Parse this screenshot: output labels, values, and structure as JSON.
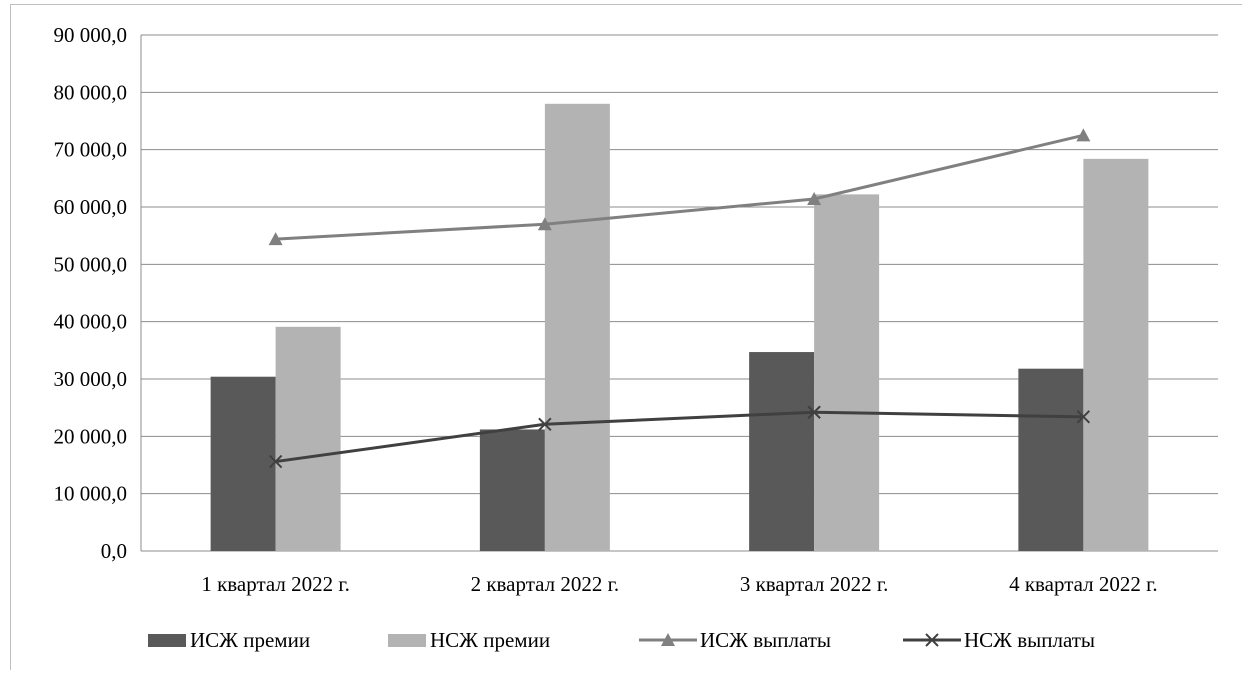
{
  "chart_data": {
    "type": "bar",
    "categories": [
      "1 квартал 2022 г.",
      "2 квартал 2022 г.",
      "3 квартал 2022 г.",
      "4 квартал 2022 г."
    ],
    "series": [
      {
        "name": "ИСЖ премии",
        "kind": "bar",
        "color": "#595959",
        "values": [
          30400,
          21200,
          34700,
          31800
        ]
      },
      {
        "name": "НСЖ премии",
        "kind": "bar",
        "color": "#b3b3b3",
        "values": [
          39100,
          78000,
          62200,
          68400
        ]
      },
      {
        "name": "ИСЖ выплаты",
        "kind": "line",
        "marker": "triangle",
        "color": "#808080",
        "values": [
          54400,
          57000,
          61400,
          72500
        ]
      },
      {
        "name": "НСЖ выплаты",
        "kind": "line",
        "marker": "x",
        "color": "#404040",
        "values": [
          15600,
          22100,
          24200,
          23400
        ]
      }
    ],
    "y_ticks": [
      "0,0",
      "10 000,0",
      "20 000,0",
      "30 000,0",
      "40 000,0",
      "50 000,0",
      "60 000,0",
      "70 000,0",
      "80 000,0",
      "90 000,0"
    ],
    "ylim": [
      0,
      90000
    ],
    "grid": true,
    "legend": "bottom"
  }
}
